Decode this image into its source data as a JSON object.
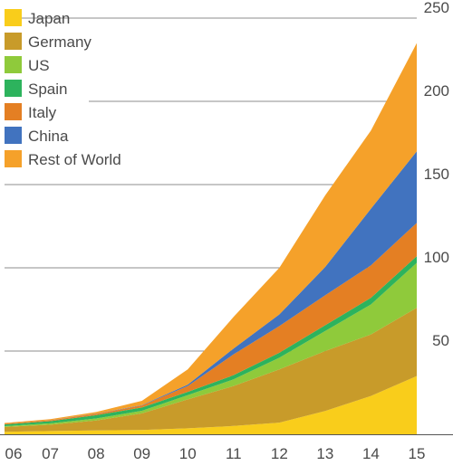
{
  "chart_data": {
    "type": "area",
    "stacked": true,
    "title": "",
    "xlabel": "",
    "ylabel": "",
    "categories": [
      "06",
      "07",
      "08",
      "09",
      "10",
      "11",
      "12",
      "13",
      "14",
      "15"
    ],
    "ylim": [
      0,
      250
    ],
    "y_ticks": [
      50,
      100,
      150,
      200,
      250
    ],
    "y_axis_position": "right",
    "grid": "horizontal",
    "legend_position": "top-left",
    "series": [
      {
        "name": "Japan",
        "color": "#f9cd1b",
        "values": [
          1.5,
          2,
          2.3,
          2.6,
          3.6,
          5,
          7,
          14,
          23,
          35
        ]
      },
      {
        "name": "Germany",
        "color": "#c89b2a",
        "values": [
          2.9,
          3.8,
          6,
          10,
          17.4,
          24,
          32,
          36,
          37,
          41
        ]
      },
      {
        "name": "US",
        "color": "#8fca3b",
        "values": [
          0.5,
          0.8,
          1.2,
          1.5,
          2.5,
          4,
          7,
          12,
          18,
          27
        ]
      },
      {
        "name": "Spain",
        "color": "#2db35d",
        "values": [
          1,
          1.3,
          2,
          2,
          2,
          2.5,
          3,
          3.5,
          4,
          4
        ]
      },
      {
        "name": "Italy",
        "color": "#e47f23",
        "values": [
          0.5,
          0.5,
          0.8,
          1.2,
          3.5,
          12.5,
          16,
          18,
          19.5,
          20
        ]
      },
      {
        "name": "China",
        "color": "#4173bf",
        "values": [
          0,
          0.1,
          0.1,
          0.2,
          0.8,
          3.5,
          7,
          17,
          34,
          43
        ]
      },
      {
        "name": "Rest of World",
        "color": "#f5a12a",
        "values": [
          0.4,
          0.6,
          1,
          2.6,
          9.2,
          19,
          28,
          43,
          47,
          65
        ]
      }
    ]
  }
}
